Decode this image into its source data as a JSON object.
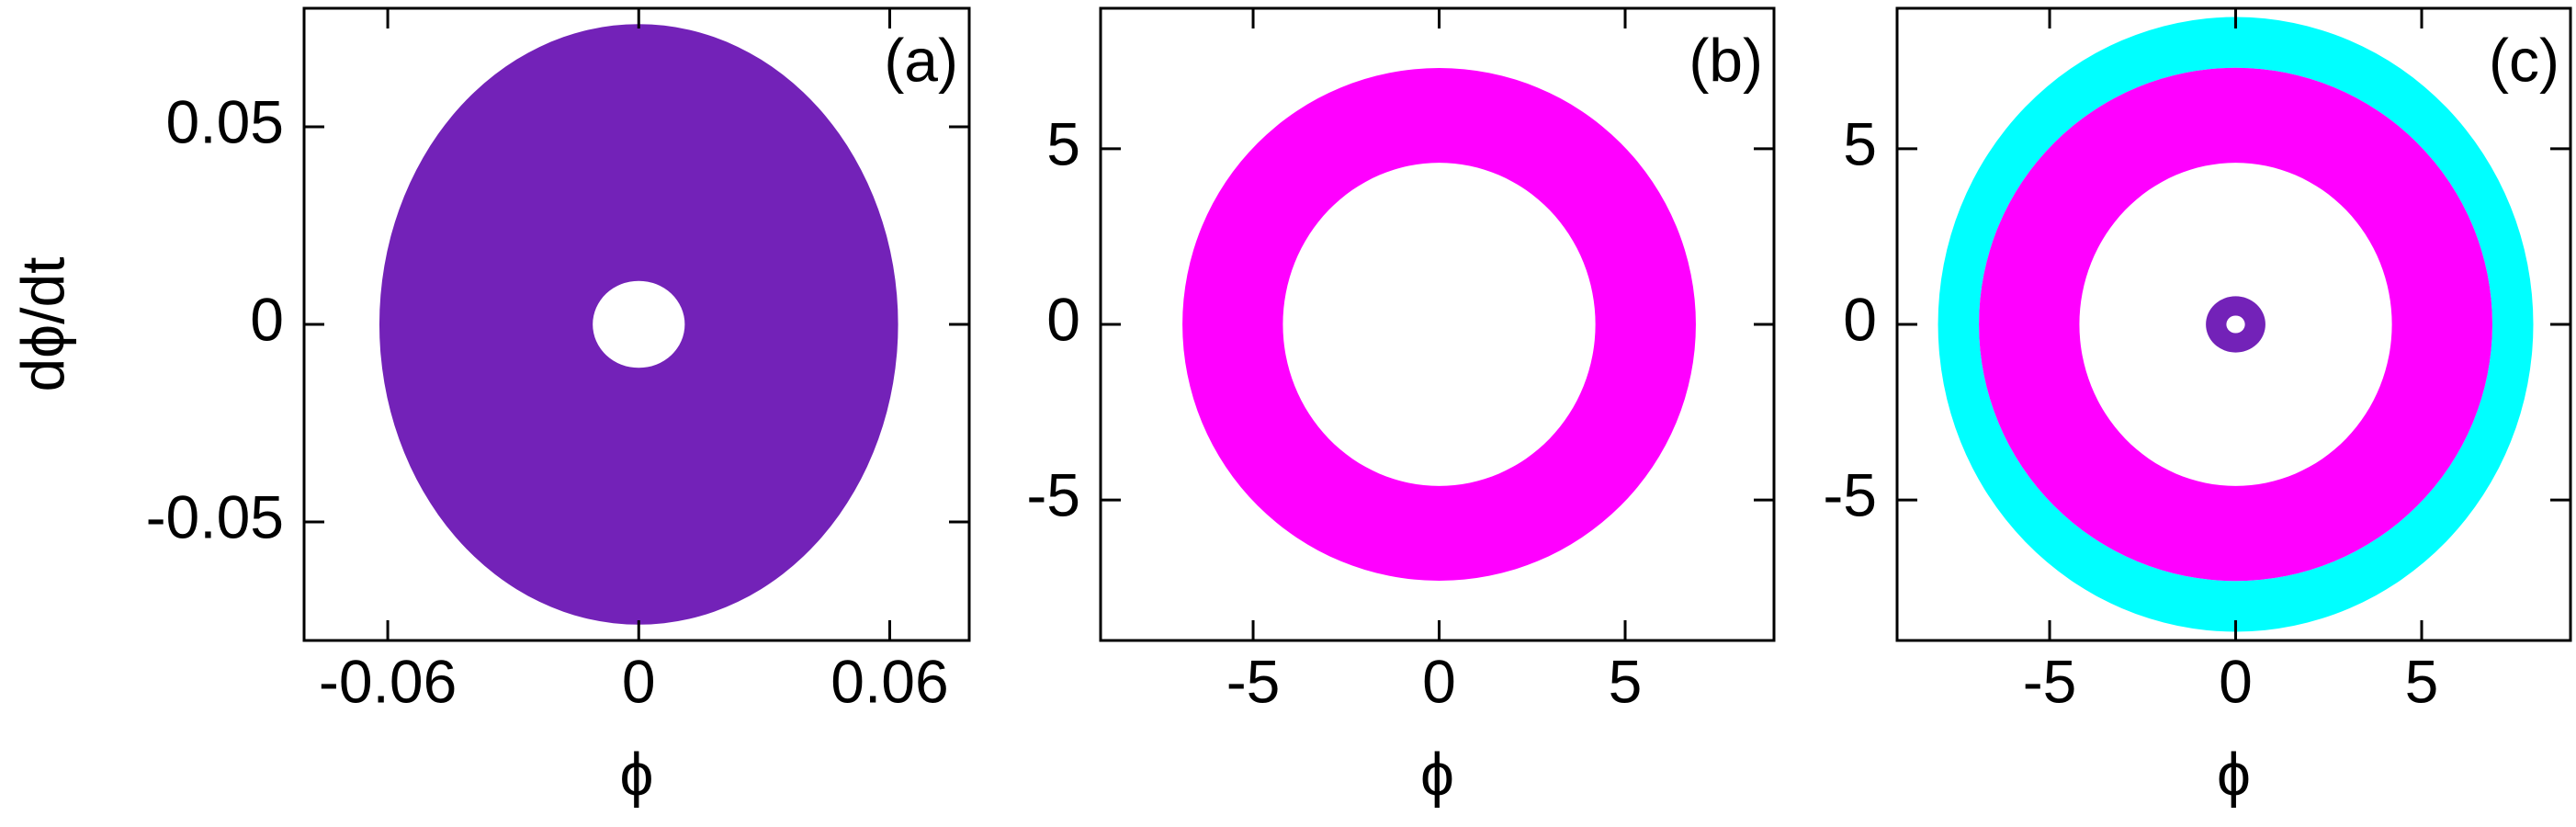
{
  "chart_data": [
    {
      "type": "annulus",
      "annotation": "(a)",
      "xlabel": "ϕ",
      "ylabel": "dϕ/dt",
      "xlim": [
        -0.08,
        0.079
      ],
      "ylim": [
        -0.08,
        0.08
      ],
      "xticks": [
        -0.06,
        0,
        0.06
      ],
      "yticks": [
        -0.05,
        0,
        0.05
      ],
      "series": [
        {
          "color": "#7322b8",
          "outer_rx": 0.062,
          "outer_ry": 0.076,
          "inner_rx": 0.011,
          "inner_ry": 0.011
        }
      ]
    },
    {
      "type": "annulus",
      "annotation": "(b)",
      "xlabel": "ϕ",
      "xlim": [
        -9.1,
        9.0
      ],
      "ylim": [
        -9.0,
        9.0
      ],
      "xticks": [
        -5,
        0,
        5
      ],
      "yticks": [
        -5,
        0,
        5
      ],
      "series": [
        {
          "color": "#ff00ff",
          "outer_rx": 6.9,
          "outer_ry": 7.3,
          "inner_rx": 4.2,
          "inner_ry": 4.6
        }
      ]
    },
    {
      "type": "annulus",
      "annotation": "(c)",
      "xlabel": "ϕ",
      "xlim": [
        -9.1,
        9.0
      ],
      "ylim": [
        -9.0,
        9.0
      ],
      "xticks": [
        -5,
        0,
        5
      ],
      "yticks": [
        -5,
        0,
        5
      ],
      "series": [
        {
          "color": "#00ffff",
          "outer_rx": 8.0,
          "outer_ry": 8.75,
          "inner_rx": 6.9,
          "inner_ry": 7.3
        },
        {
          "color": "#ff00ff",
          "outer_rx": 6.9,
          "outer_ry": 7.3,
          "inner_rx": 4.2,
          "inner_ry": 4.6
        },
        {
          "color": "#7322b8",
          "outer_rx": 0.8,
          "outer_ry": 0.8,
          "inner_rx": 0.25,
          "inner_ry": 0.25
        }
      ]
    }
  ]
}
